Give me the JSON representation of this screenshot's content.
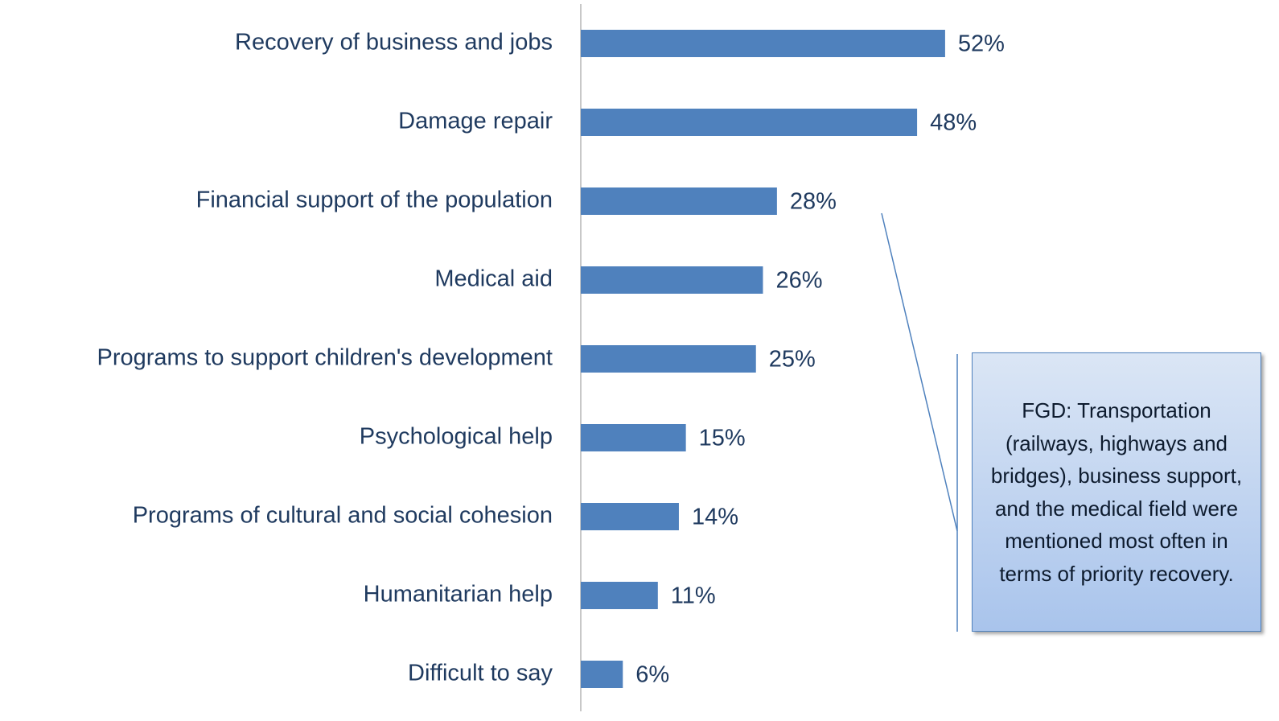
{
  "chart_data": {
    "type": "bar",
    "orientation": "horizontal",
    "categories": [
      "Recovery of business and jobs",
      "Damage repair",
      "Financial support of the population",
      "Medical aid",
      "Programs to support children's development",
      "Psychological help",
      "Programs of cultural and social cohesion",
      "Humanitarian help",
      "Difficult to say"
    ],
    "values": [
      52,
      48,
      28,
      26,
      25,
      15,
      14,
      11,
      6
    ],
    "value_labels": [
      "52%",
      "48%",
      "28%",
      "26%",
      "25%",
      "15%",
      "14%",
      "11%",
      "6%"
    ],
    "color": "#4f81bd",
    "annotation": "FGD: Transportation (railways, highways and bridges), business support, and the medical field were mentioned most often in terms of priority recovery."
  }
}
